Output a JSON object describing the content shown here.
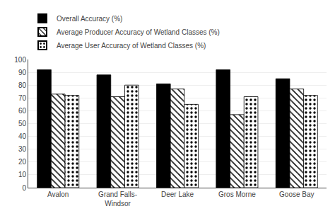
{
  "chart_data": {
    "type": "bar",
    "categories": [
      "Avalon",
      "Grand Falls-\nWindsor",
      "Deer Lake",
      "Gros Morne",
      "Goose Bay"
    ],
    "series": [
      {
        "name": "Overall Accuracy (%)",
        "color": "#000000",
        "values": [
          92,
          88,
          81,
          92,
          85
        ]
      },
      {
        "name": "Average Producer Accuracy of Wetland Classes (%)",
        "color": "#ffffff",
        "values": [
          73,
          71,
          77,
          57,
          77
        ]
      },
      {
        "name": "Average User Accuracy of Wetland Classes (%)",
        "color": "#ffffff",
        "values": [
          72,
          80,
          65,
          71,
          72
        ]
      }
    ],
    "ylim": [
      0,
      100
    ],
    "yticks": [
      0,
      10,
      20,
      30,
      40,
      50,
      60,
      70,
      80,
      90,
      100
    ],
    "grid": true,
    "legend": "upper left"
  }
}
